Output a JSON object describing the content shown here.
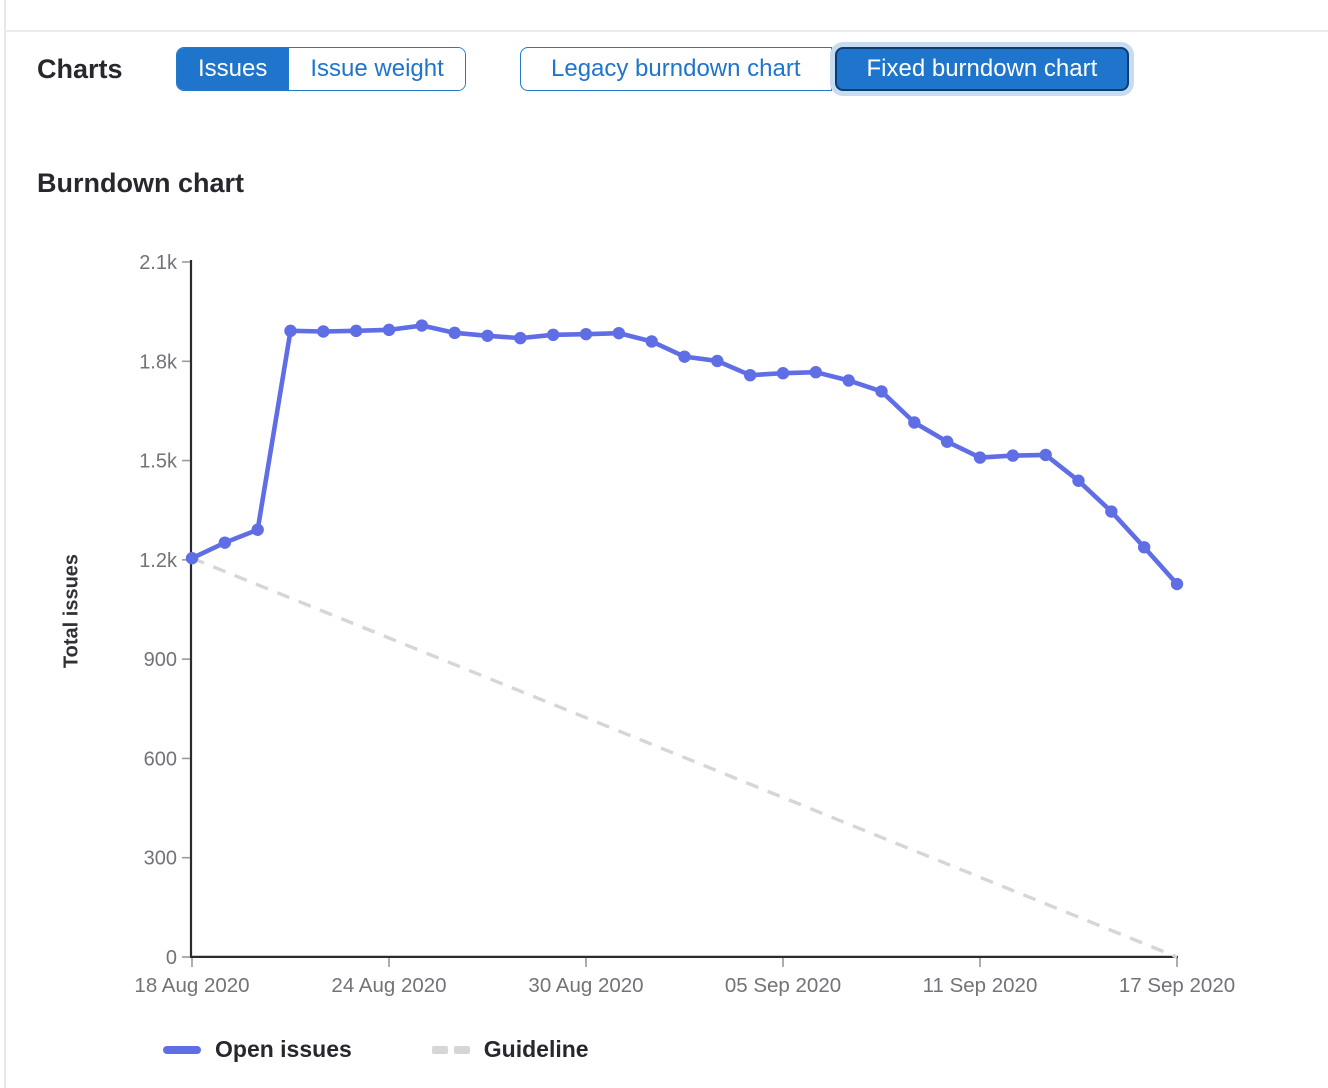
{
  "header": {
    "charts_label": "Charts",
    "metric_toggle": {
      "options": [
        {
          "label": "Issues",
          "selected": true
        },
        {
          "label": "Issue weight",
          "selected": false
        }
      ]
    },
    "chart_type_toggle": {
      "options": [
        {
          "label": "Legacy burndown chart",
          "selected": false
        },
        {
          "label": "Fixed burndown chart",
          "selected": true
        }
      ]
    }
  },
  "chart_data": {
    "type": "line",
    "title": "Burndown chart",
    "xlabel": "",
    "ylabel": "Total issues",
    "ylim": [
      0,
      2100
    ],
    "grid": false,
    "legend_position": "bottom",
    "y_ticks": [
      0,
      300,
      600,
      900,
      1200,
      1500,
      1800,
      2100
    ],
    "y_tick_labels": [
      "0",
      "300",
      "600",
      "900",
      "1.2k",
      "1.5k",
      "1.8k",
      "2.1k"
    ],
    "x": [
      "18 Aug 2020",
      "19 Aug 2020",
      "20 Aug 2020",
      "21 Aug 2020",
      "22 Aug 2020",
      "23 Aug 2020",
      "24 Aug 2020",
      "25 Aug 2020",
      "26 Aug 2020",
      "27 Aug 2020",
      "28 Aug 2020",
      "29 Aug 2020",
      "30 Aug 2020",
      "31 Aug 2020",
      "01 Sep 2020",
      "02 Sep 2020",
      "03 Sep 2020",
      "04 Sep 2020",
      "05 Sep 2020",
      "06 Sep 2020",
      "07 Sep 2020",
      "08 Sep 2020",
      "09 Sep 2020",
      "10 Sep 2020",
      "11 Sep 2020",
      "12 Sep 2020",
      "13 Sep 2020",
      "14 Sep 2020",
      "15 Sep 2020",
      "16 Sep 2020",
      "17 Sep 2020"
    ],
    "x_tick_indices": [
      0,
      6,
      12,
      18,
      24,
      30
    ],
    "x_tick_labels": [
      "18 Aug 2020",
      "24 Aug 2020",
      "30 Aug 2020",
      "05 Sep 2020",
      "11 Sep 2020",
      "17 Sep 2020"
    ],
    "series": [
      {
        "name": "Open issues",
        "style": "solid",
        "color": "#5f6ee4",
        "values": [
          1205,
          1252,
          1291,
          1892,
          1890,
          1892,
          1895,
          1908,
          1886,
          1877,
          1870,
          1880,
          1882,
          1885,
          1860,
          1814,
          1801,
          1758,
          1764,
          1767,
          1742,
          1709,
          1615,
          1557,
          1509,
          1515,
          1517,
          1439,
          1346,
          1238,
          1127
        ]
      },
      {
        "name": "Guideline",
        "style": "dashed",
        "color": "#d6d6d9",
        "start_value": 1205,
        "end_value": 0
      }
    ]
  },
  "colors": {
    "accent_blue": "#1f75cb",
    "selected_border": "#0d3c6e",
    "focus_ring": "#c8dcf1",
    "series_blue": "#5f6ee4",
    "guideline_gray": "#d6d6d9",
    "axis_line": "#2b2a2e",
    "tick_mark": "#9a999e",
    "tick_text": "#737278",
    "heading_text": "#28272d",
    "panel_border": "#e7e7ea"
  }
}
